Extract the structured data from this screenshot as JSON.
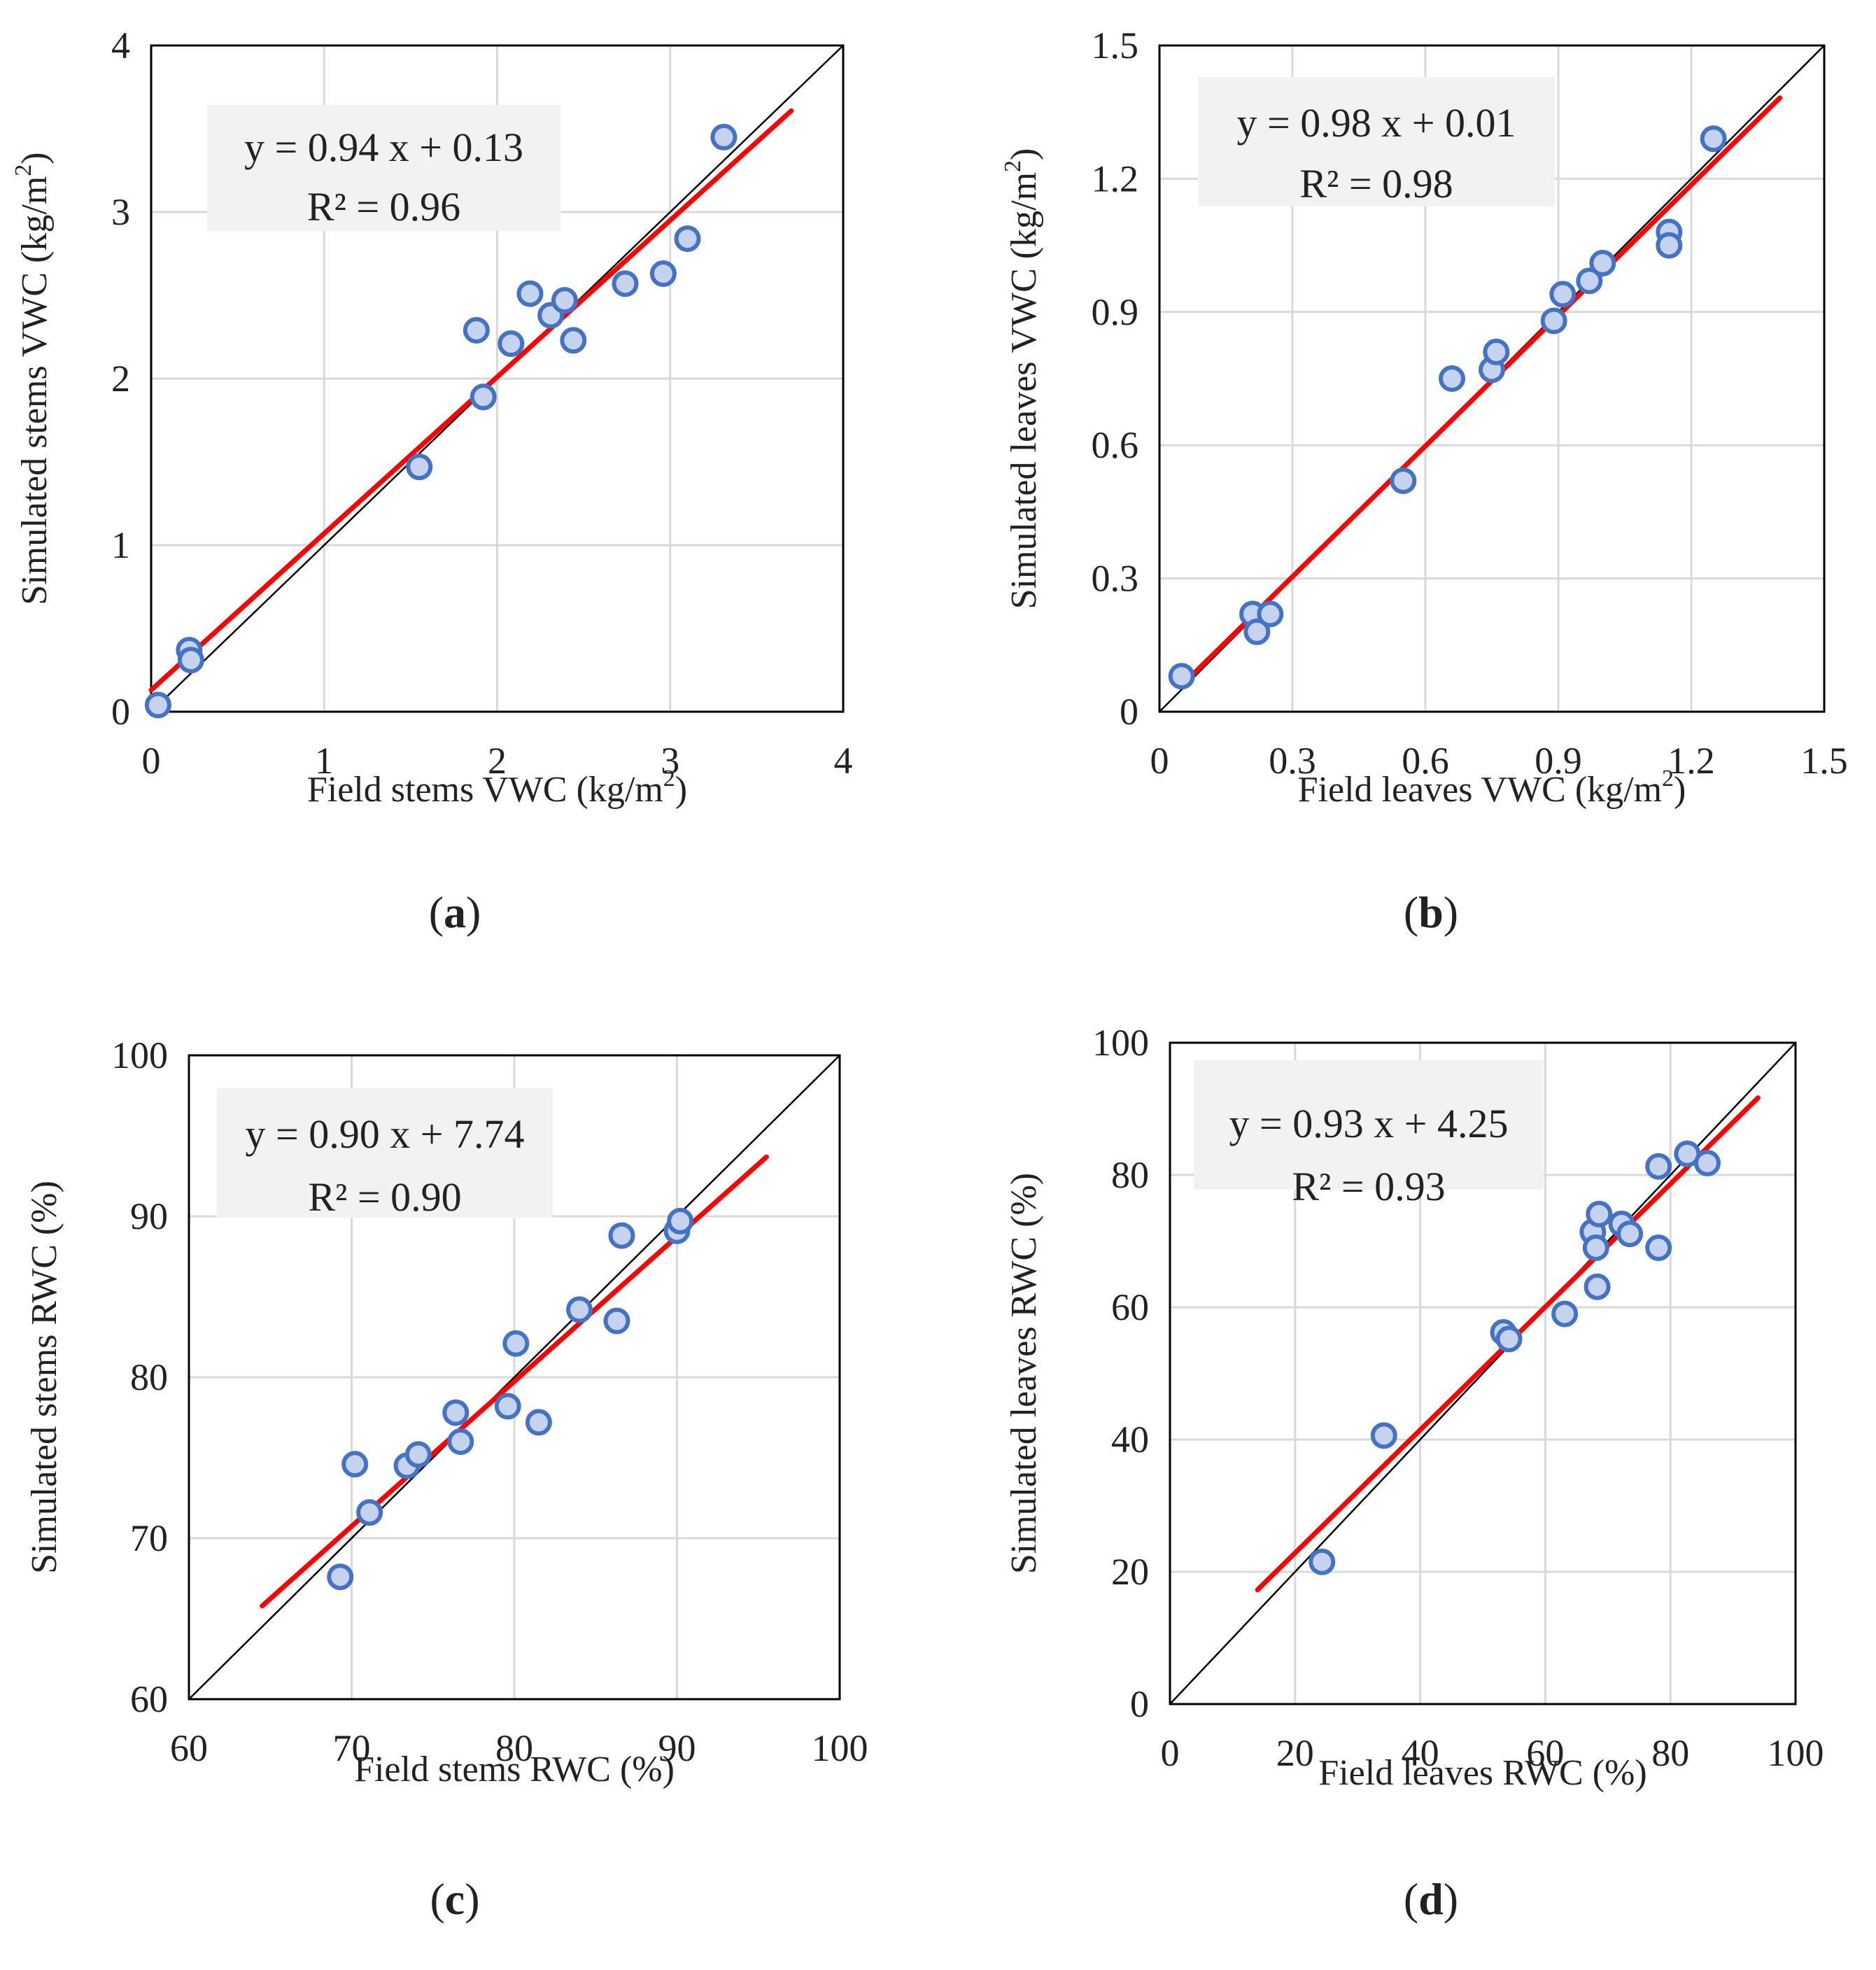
{
  "figure": {
    "colors": {
      "marker_edge": "#4472C4",
      "marker_fill": "#C5D3EE",
      "fit_line": "#FF0000",
      "identity_line": "#000000",
      "grid": "#D9D9D9",
      "equation_box": "#F2F2F2"
    }
  },
  "chart_data": [
    {
      "panel": "a",
      "panel_label": "(a)",
      "type": "scatter",
      "xlabel": "Field stems VWC (kg/m²)",
      "ylabel": "Simulated stems VWC (kg/m²)",
      "xlim": [
        0,
        4
      ],
      "ylim": [
        0,
        4
      ],
      "xticks": [
        0,
        1,
        2,
        3,
        4
      ],
      "yticks": [
        0,
        1,
        2,
        3,
        4
      ],
      "xtick_labels": [
        "0",
        "1",
        "2",
        "3",
        "4"
      ],
      "ytick_labels": [
        "0",
        "1",
        "2",
        "3",
        "4"
      ],
      "grid": true,
      "equation": "y = 0.94 x + 0.13",
      "r2_label": "R² = 0.96",
      "fit": {
        "slope": 0.94,
        "intercept": 0.13,
        "x_range": [
          0,
          3.7
        ]
      },
      "identity_line": true,
      "points": [
        [
          0.04,
          0.04
        ],
        [
          0.22,
          0.37
        ],
        [
          0.23,
          0.31
        ],
        [
          1.55,
          1.47
        ],
        [
          1.88,
          2.29
        ],
        [
          1.92,
          1.89
        ],
        [
          2.08,
          2.21
        ],
        [
          2.19,
          2.51
        ],
        [
          2.31,
          2.38
        ],
        [
          2.39,
          2.47
        ],
        [
          2.44,
          2.23
        ],
        [
          2.74,
          2.57
        ],
        [
          2.96,
          2.63
        ],
        [
          3.1,
          2.84
        ],
        [
          3.31,
          3.45
        ]
      ]
    },
    {
      "panel": "b",
      "panel_label": "(b)",
      "type": "scatter",
      "xlabel": "Field leaves VWC (kg/m²)",
      "ylabel": "Simulated leaves VWC (kg/m²)",
      "xlim": [
        0,
        1.5
      ],
      "ylim": [
        0,
        1.5
      ],
      "xticks": [
        0,
        0.3,
        0.6,
        0.9,
        1.2,
        1.5
      ],
      "yticks": [
        0,
        0.3,
        0.6,
        0.9,
        1.2,
        1.5
      ],
      "xtick_labels": [
        "0",
        "0.3",
        "0.6",
        "0.9",
        "1.2",
        "1.5"
      ],
      "ytick_labels": [
        "0",
        "0.3",
        "0.6",
        "0.9",
        "1.2",
        "1.5"
      ],
      "grid": true,
      "equation": "y = 0.98 x + 0.01",
      "r2_label": "R² = 0.98",
      "fit": {
        "slope": 0.98,
        "intercept": 0.01,
        "x_range": [
          0.05,
          1.4
        ]
      },
      "identity_line": true,
      "points": [
        [
          0.05,
          0.08
        ],
        [
          0.21,
          0.22
        ],
        [
          0.22,
          0.18
        ],
        [
          0.25,
          0.22
        ],
        [
          0.55,
          0.52
        ],
        [
          0.66,
          0.75
        ],
        [
          0.75,
          0.77
        ],
        [
          0.76,
          0.81
        ],
        [
          0.89,
          0.88
        ],
        [
          0.91,
          0.94
        ],
        [
          0.97,
          0.97
        ],
        [
          1.0,
          1.01
        ],
        [
          1.15,
          1.08
        ],
        [
          1.15,
          1.05
        ],
        [
          1.25,
          1.29
        ]
      ]
    },
    {
      "panel": "c",
      "panel_label": "(c)",
      "type": "scatter",
      "xlabel": "Field stems RWC (%)",
      "ylabel": "Simulated stems RWC (%)",
      "xlim": [
        60,
        100
      ],
      "ylim": [
        60,
        100
      ],
      "xticks": [
        60,
        70,
        80,
        90,
        100
      ],
      "yticks": [
        60,
        70,
        80,
        90,
        100
      ],
      "xtick_labels": [
        "60",
        "70",
        "80",
        "90",
        "100"
      ],
      "ytick_labels": [
        "60",
        "70",
        "80",
        "90",
        "100"
      ],
      "grid": true,
      "equation": "y = 0.90 x + 7.74",
      "r2_label": "R² = 0.90",
      "fit": {
        "slope": 0.9,
        "intercept": 7.74,
        "x_range": [
          64.5,
          95.5
        ]
      },
      "identity_line": true,
      "points": [
        [
          69.3,
          67.6
        ],
        [
          70.2,
          74.6
        ],
        [
          71.1,
          71.6
        ],
        [
          73.4,
          74.5
        ],
        [
          74.1,
          75.2
        ],
        [
          76.4,
          77.8
        ],
        [
          76.7,
          76.0
        ],
        [
          79.6,
          78.2
        ],
        [
          80.1,
          82.1
        ],
        [
          81.5,
          77.2
        ],
        [
          84.0,
          84.2
        ],
        [
          86.3,
          83.5
        ],
        [
          86.6,
          88.8
        ],
        [
          90.0,
          89.1
        ],
        [
          90.2,
          89.7
        ]
      ]
    },
    {
      "panel": "d",
      "panel_label": "(d)",
      "type": "scatter",
      "xlabel": "Field leaves RWC (%)",
      "ylabel": "Simulated leaves RWC (%)",
      "xlim": [
        0,
        100
      ],
      "ylim": [
        0,
        100
      ],
      "xticks": [
        0,
        20,
        40,
        60,
        80,
        100
      ],
      "yticks": [
        0,
        20,
        40,
        60,
        80,
        100
      ],
      "xtick_labels": [
        "0",
        "20",
        "40",
        "60",
        "80",
        "100"
      ],
      "ytick_labels": [
        "0",
        "20",
        "40",
        "60",
        "80",
        "100"
      ],
      "grid": true,
      "equation": "y = 0.93 x + 4.25",
      "r2_label": "R² = 0.93",
      "fit": {
        "slope": 0.93,
        "intercept": 4.25,
        "x_range": [
          14,
          94
        ]
      },
      "identity_line": true,
      "points": [
        [
          24.3,
          21.5
        ],
        [
          34.2,
          40.6
        ],
        [
          53.3,
          56.2
        ],
        [
          54.2,
          55.2
        ],
        [
          63.1,
          59.0
        ],
        [
          67.6,
          71.4
        ],
        [
          68.1,
          69.0
        ],
        [
          68.3,
          63.1
        ],
        [
          68.6,
          74.1
        ],
        [
          72.2,
          72.6
        ],
        [
          73.5,
          71.1
        ],
        [
          78.1,
          81.3
        ],
        [
          78.1,
          69.0
        ],
        [
          82.7,
          83.2
        ],
        [
          85.9,
          81.8
        ]
      ]
    }
  ]
}
